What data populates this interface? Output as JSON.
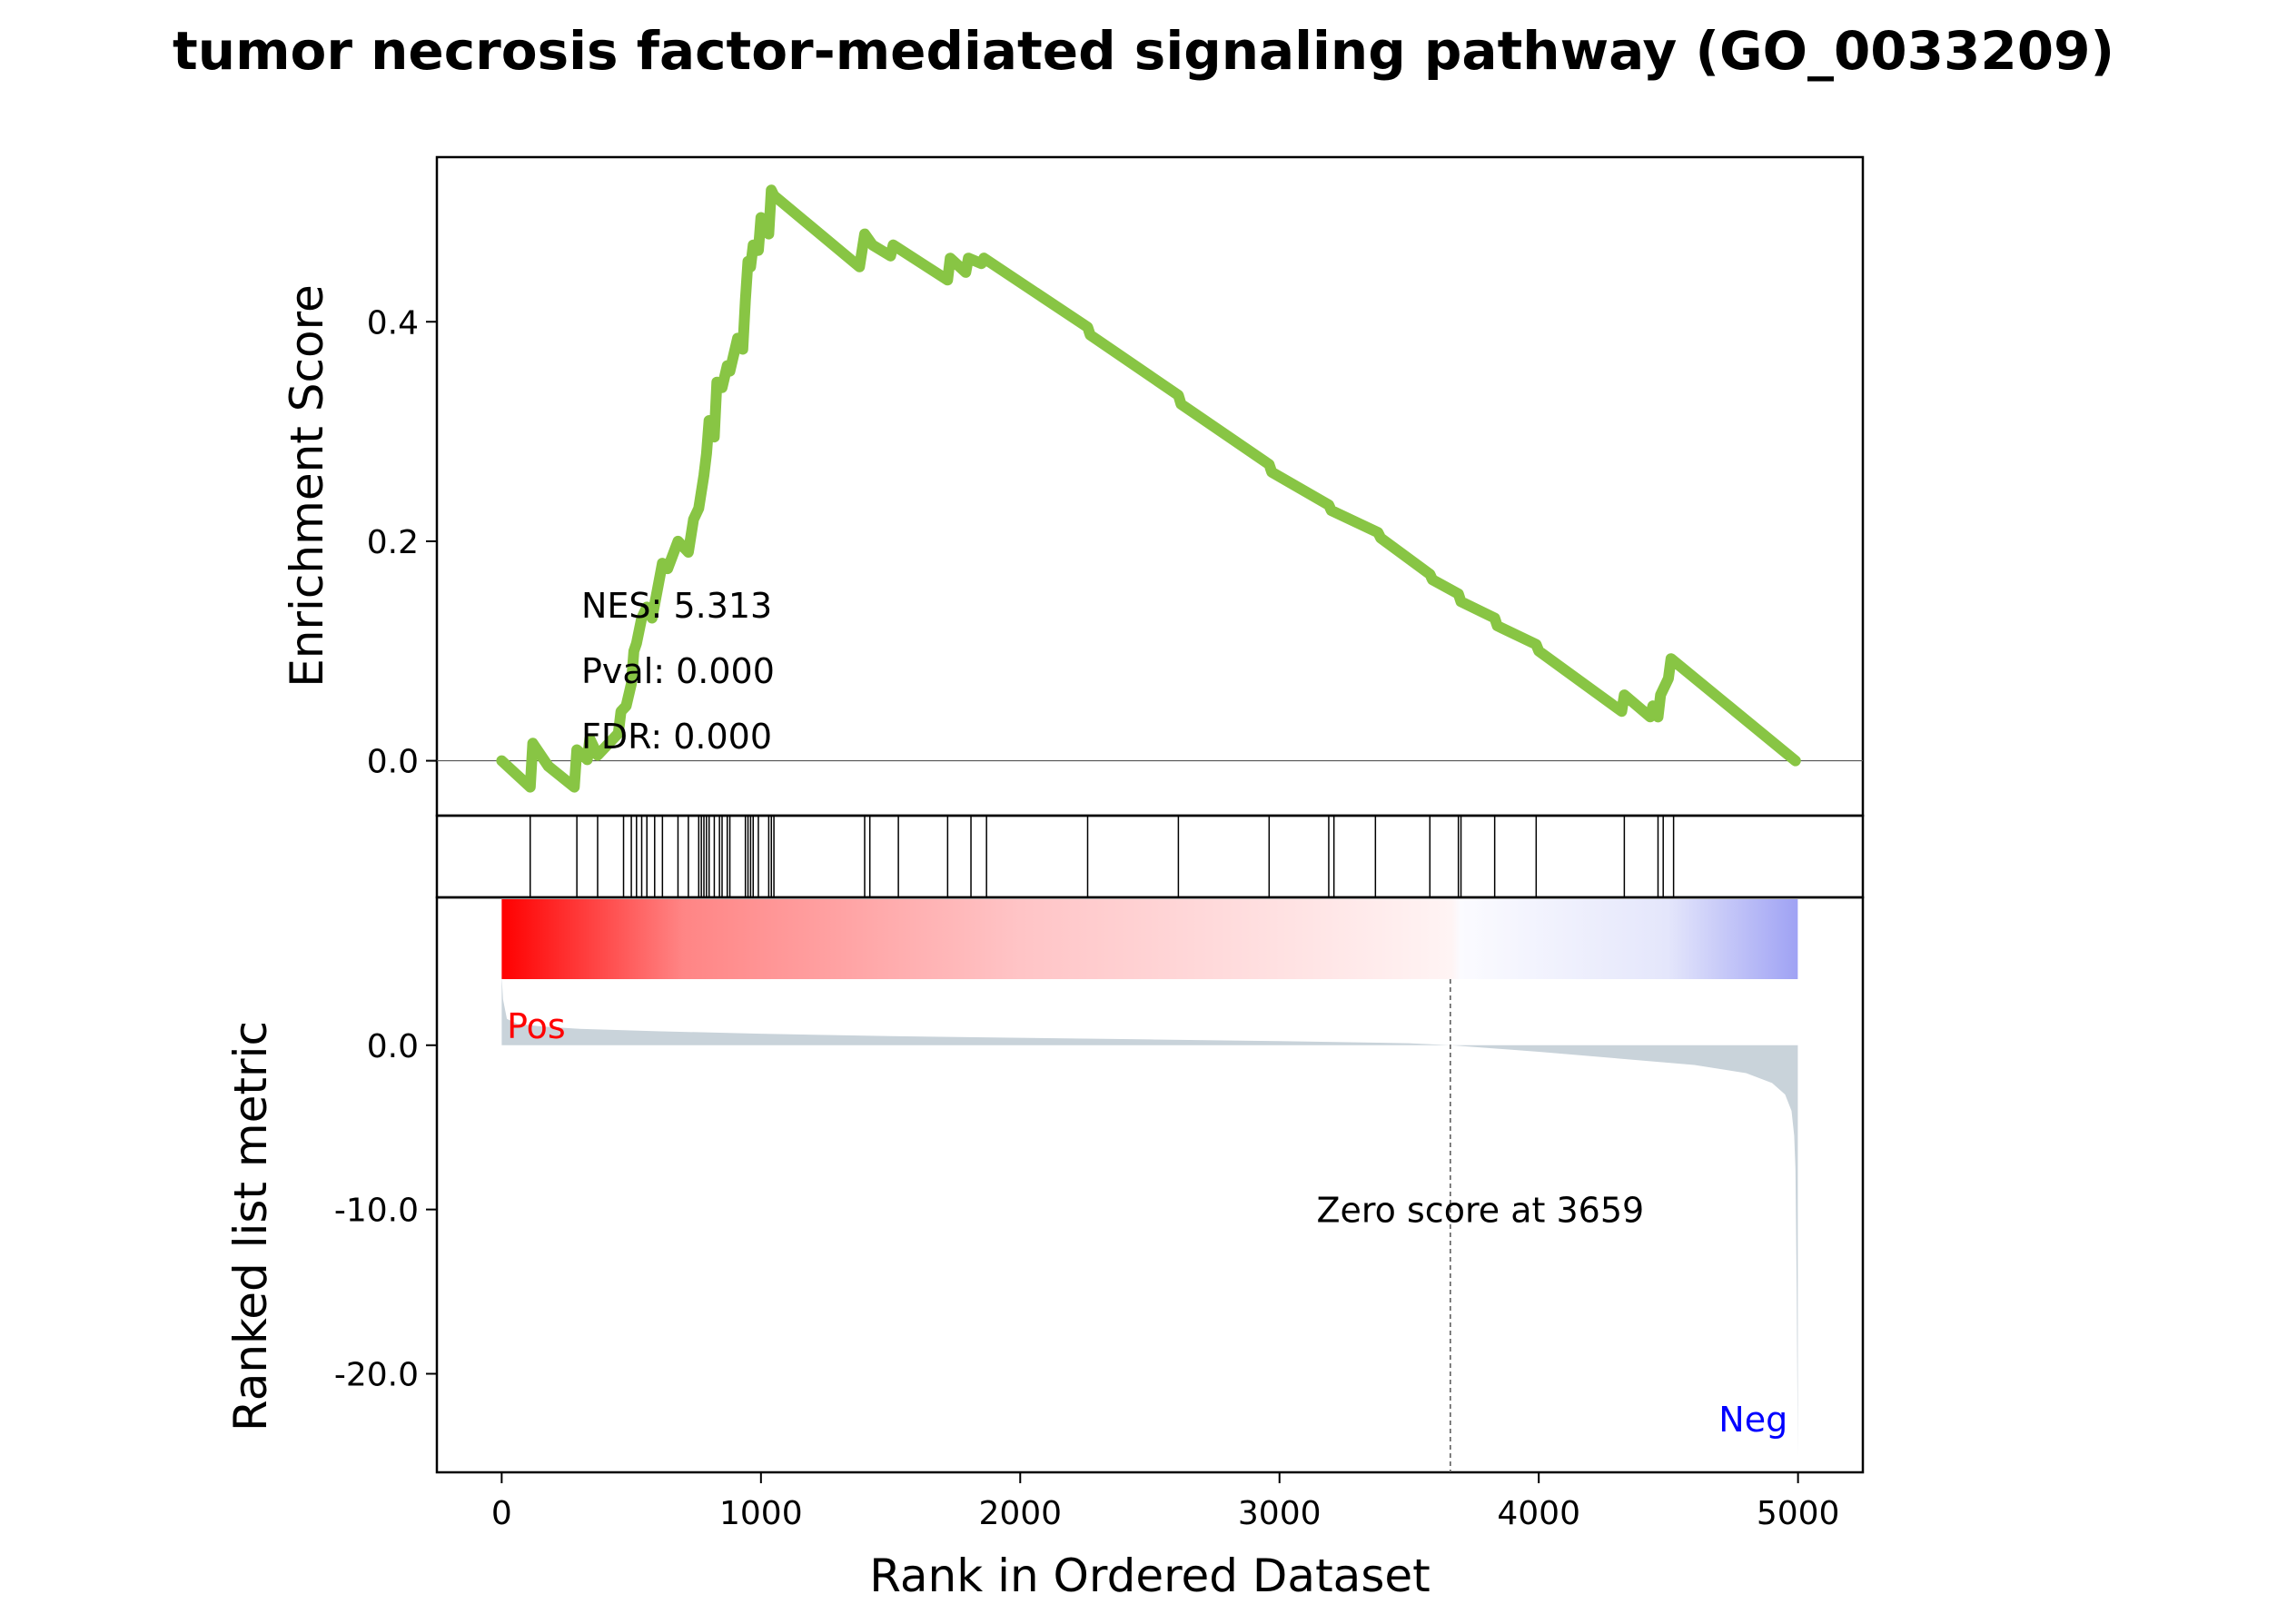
{
  "chart_data": {
    "type": "line",
    "title": "tumor necrosis factor-mediated signaling pathway (GO_0033209)",
    "xlabel": "Rank in Ordered Dataset",
    "x_ticks": [
      0,
      1000,
      2000,
      3000,
      4000,
      5000
    ],
    "x_tick_labels": [
      "0",
      "1000",
      "2000",
      "3000",
      "4000",
      "5000"
    ],
    "xlim": [
      -250,
      5250
    ],
    "enrichment_panel": {
      "ylabel": "Enrichment Score",
      "ylim": [
        -0.05,
        0.55
      ],
      "y_ticks": [
        0.0,
        0.2,
        0.4
      ],
      "y_tick_labels": [
        "0.0",
        "0.2",
        "0.4"
      ],
      "line_color": "#88c544",
      "stats": [
        "NES: 5.313",
        "Pval: 0.000",
        "FDR: 0.000"
      ],
      "series": [
        {
          "x": [
            0,
            110,
            120,
            180,
            280,
            290,
            330,
            340,
            370,
            450,
            460,
            480,
            500,
            510,
            520,
            540,
            560,
            580,
            620,
            640,
            680,
            720,
            740,
            760,
            780,
            790,
            800,
            820,
            830,
            850,
            870,
            880,
            910,
            930,
            940,
            950,
            960,
            970,
            990,
            1000,
            1030,
            1040,
            1050,
            1380,
            1400,
            1430,
            1500,
            1510,
            1720,
            1730,
            1790,
            1800,
            1850,
            1860,
            2260,
            2270,
            2610,
            2620,
            2960,
            2970,
            3190,
            3200,
            3380,
            3390,
            3580,
            3590,
            3690,
            3700,
            3830,
            3840,
            3990,
            4000,
            4320,
            4330,
            4430,
            4440,
            4460,
            4470,
            4500,
            4510,
            4990
          ],
          "y": [
            0.0,
            -0.024,
            0.016,
            -0.005,
            -0.024,
            0.01,
            0.001,
            0.02,
            0.005,
            0.025,
            0.045,
            0.05,
            0.07,
            0.1,
            0.107,
            0.13,
            0.14,
            0.13,
            0.18,
            0.175,
            0.2,
            0.19,
            0.22,
            0.23,
            0.26,
            0.28,
            0.31,
            0.295,
            0.345,
            0.34,
            0.36,
            0.355,
            0.385,
            0.375,
            0.42,
            0.455,
            0.45,
            0.47,
            0.465,
            0.495,
            0.48,
            0.52,
            0.515,
            0.45,
            0.48,
            0.47,
            0.46,
            0.47,
            0.438,
            0.458,
            0.445,
            0.458,
            0.453,
            0.458,
            0.395,
            0.388,
            0.333,
            0.325,
            0.27,
            0.263,
            0.233,
            0.228,
            0.208,
            0.203,
            0.17,
            0.165,
            0.152,
            0.145,
            0.13,
            0.123,
            0.106,
            0.1,
            0.045,
            0.06,
            0.04,
            0.05,
            0.04,
            0.06,
            0.075,
            0.093,
            0.0
          ]
        }
      ]
    },
    "hits": [
      110,
      290,
      370,
      470,
      500,
      520,
      540,
      560,
      590,
      620,
      680,
      720,
      760,
      770,
      780,
      790,
      800,
      820,
      840,
      850,
      870,
      880,
      940,
      950,
      960,
      970,
      990,
      1030,
      1040,
      1050,
      1400,
      1420,
      1530,
      1720,
      1810,
      1870,
      2260,
      2610,
      2960,
      3190,
      3210,
      3370,
      3580,
      3690,
      3700,
      3830,
      3990,
      4330,
      4460,
      4480,
      4520
    ],
    "ranked_metric_panel": {
      "ylabel": "Ranked list metric",
      "ylim": [
        -26,
        9
      ],
      "y_ticks": [
        0,
        -10,
        -20
      ],
      "y_tick_labels": [
        "0.0",
        "-10.0",
        "-20.0"
      ],
      "fill_color": "#c9d3da",
      "pos_label": "Pos",
      "neg_label": "Neg",
      "pos_color": "#ff0000",
      "neg_color": "#0000ff",
      "zero_score_rank": 3659,
      "zero_score_label": "Zero score at 3659",
      "series": [
        {
          "x": [
            0,
            5,
            20,
            60,
            150,
            300,
            600,
            1000,
            1500,
            2000,
            2500,
            3000,
            3500,
            3659,
            4000,
            4300,
            4600,
            4800,
            4900,
            4950,
            4975,
            4985,
            4990,
            4995,
            4999
          ],
          "y": [
            4.2,
            2.8,
            1.6,
            1.3,
            1.15,
            1.0,
            0.85,
            0.7,
            0.55,
            0.45,
            0.35,
            0.25,
            0.12,
            0.0,
            -0.4,
            -0.8,
            -1.2,
            -1.7,
            -2.3,
            -3.0,
            -4.0,
            -5.5,
            -7.5,
            -15.0,
            -25.0
          ]
        }
      ]
    }
  }
}
